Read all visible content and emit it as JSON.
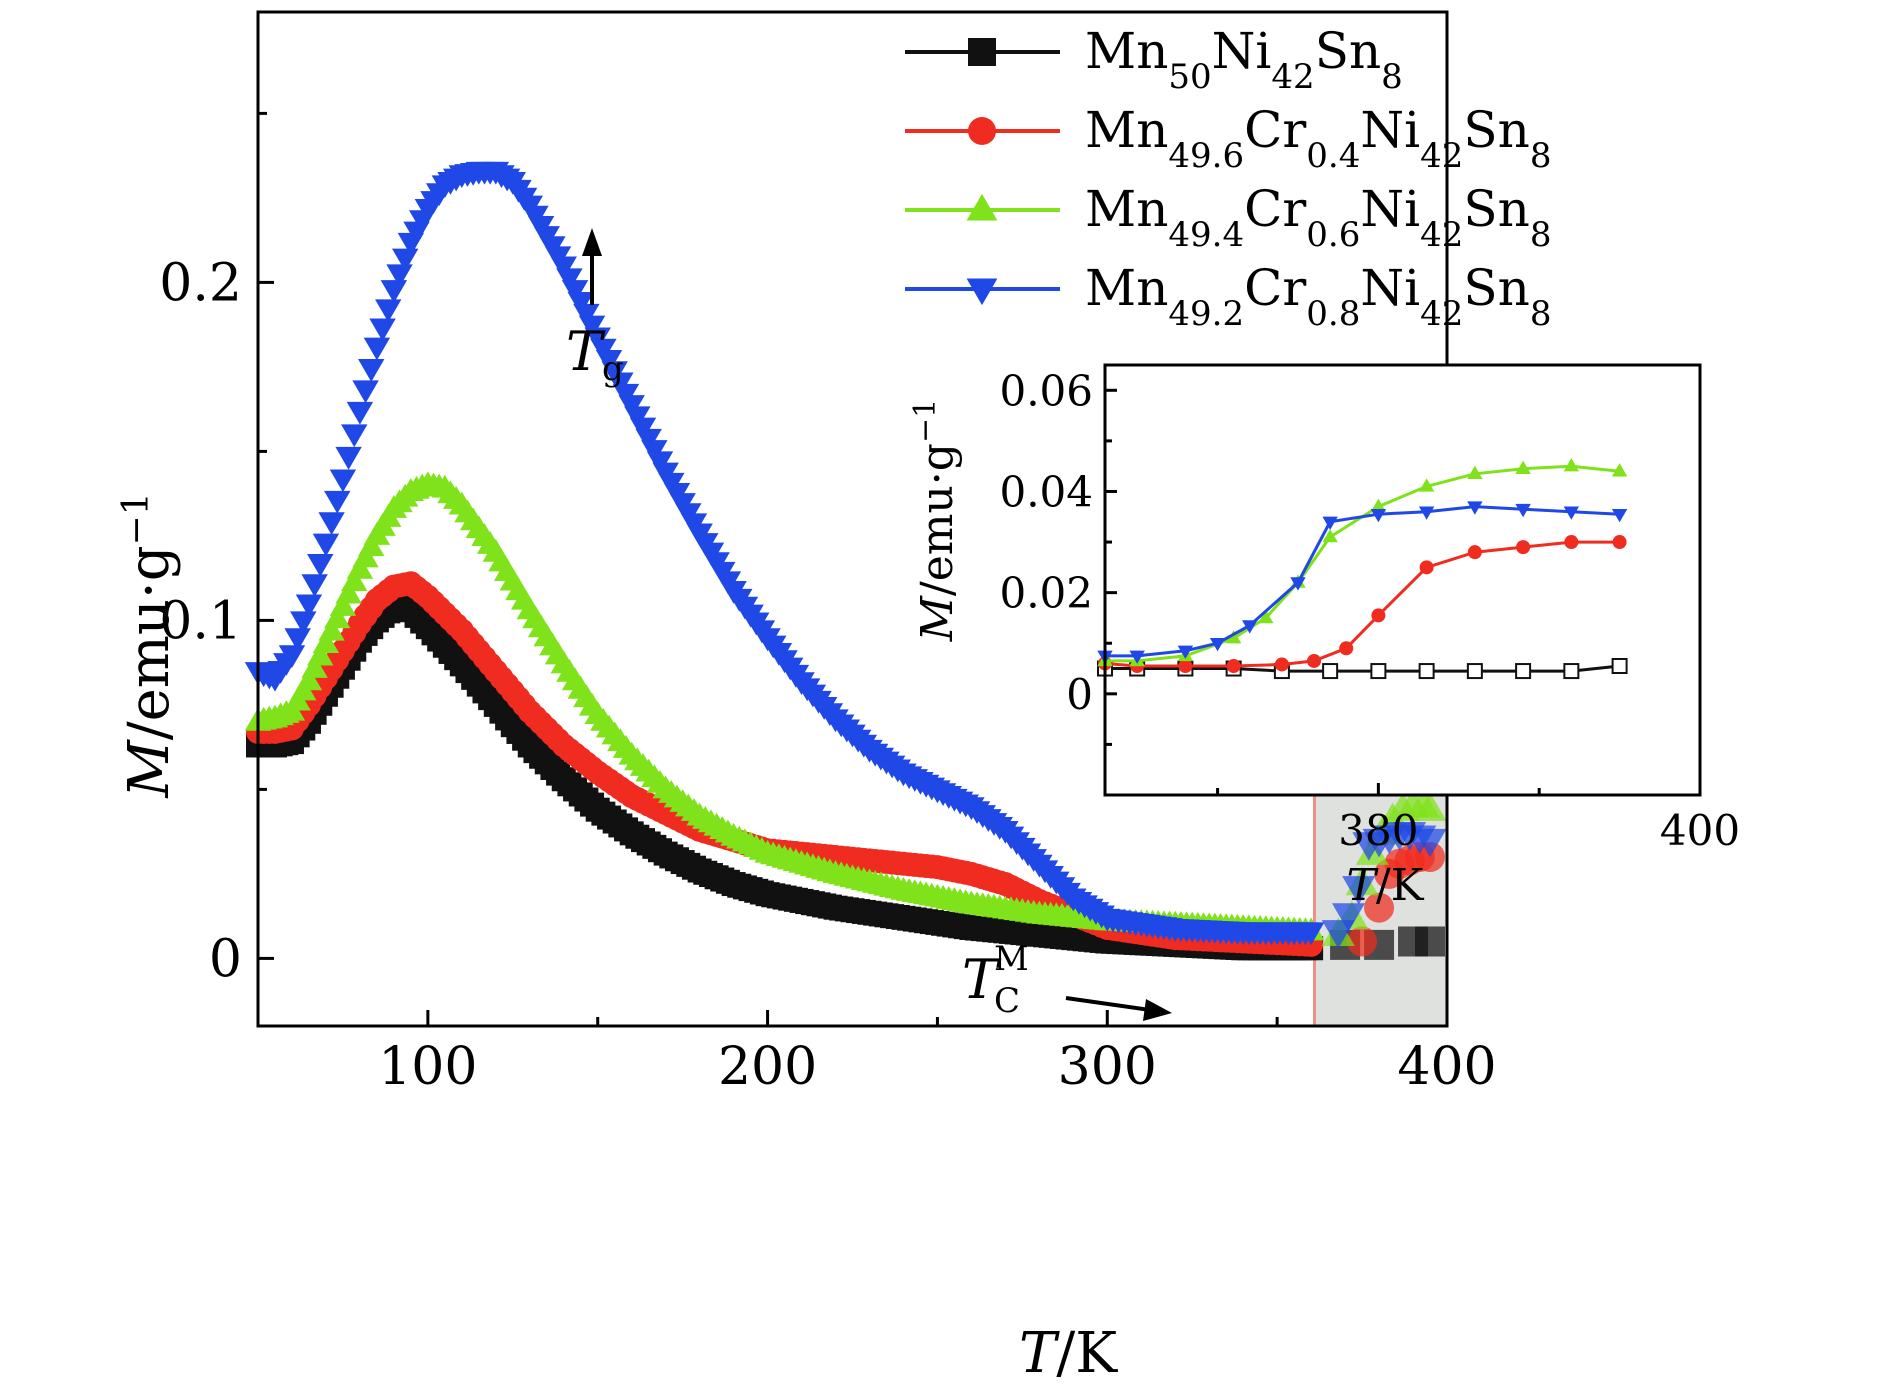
{
  "chart_data": {
    "type": "scatter",
    "xlabel": {
      "italic": "T",
      "unit": "/K"
    },
    "ylabel": {
      "italic": "M",
      "unit": "/emu·g",
      "exp": "−1"
    },
    "xlim": [
      50,
      400
    ],
    "ylim": [
      -0.02,
      0.28
    ],
    "x_ticks": [
      100,
      200,
      300,
      400
    ],
    "y_ticks": [
      {
        "value": 0,
        "label": "0"
      },
      {
        "value": 0.1,
        "label": "0.1"
      },
      {
        "value": 0.2,
        "label": "0.2"
      }
    ],
    "legend_position": "top-right",
    "annotations": {
      "tg": {
        "main": "T",
        "sub": "g"
      },
      "tc": {
        "main": "T",
        "sub": "C",
        "sup": "M"
      }
    },
    "highlight_region": {
      "x": [
        361,
        400
      ],
      "fill": "#dfe1df",
      "stroke": "#ef8f88"
    },
    "series": [
      {
        "name": "Mn50Ni42Sn8",
        "legend": [
          {
            "t": "Mn"
          },
          {
            "t": "50",
            "sub": true
          },
          {
            "t": "Ni"
          },
          {
            "t": "42",
            "sub": true
          },
          {
            "t": "Sn"
          },
          {
            "t": "8",
            "sub": true
          }
        ],
        "color": "#111111",
        "marker": "square",
        "points": [
          [
            50,
            0.063
          ],
          [
            55,
            0.063
          ],
          [
            60,
            0.064
          ],
          [
            65,
            0.07
          ],
          [
            70,
            0.078
          ],
          [
            75,
            0.086
          ],
          [
            80,
            0.094
          ],
          [
            85,
            0.1
          ],
          [
            90,
            0.104
          ],
          [
            95,
            0.103
          ],
          [
            100,
            0.098
          ],
          [
            110,
            0.087
          ],
          [
            120,
            0.075
          ],
          [
            130,
            0.063
          ],
          [
            140,
            0.053
          ],
          [
            150,
            0.044
          ],
          [
            160,
            0.037
          ],
          [
            170,
            0.031
          ],
          [
            180,
            0.026
          ],
          [
            190,
            0.022
          ],
          [
            200,
            0.019
          ],
          [
            220,
            0.015
          ],
          [
            240,
            0.012
          ],
          [
            260,
            0.009
          ],
          [
            280,
            0.007
          ],
          [
            300,
            0.005
          ],
          [
            320,
            0.004
          ],
          [
            340,
            0.003
          ],
          [
            360,
            0.003
          ],
          [
            370,
            0.004
          ],
          [
            380,
            0.004
          ],
          [
            390,
            0.005
          ],
          [
            395,
            0.005
          ]
        ]
      },
      {
        "name": "Mn49.6Cr0.4Ni42Sn8",
        "legend": [
          {
            "t": "Mn"
          },
          {
            "t": "49.6",
            "sub": true
          },
          {
            "t": "Cr"
          },
          {
            "t": "0.4",
            "sub": true
          },
          {
            "t": "Ni"
          },
          {
            "t": "42",
            "sub": true
          },
          {
            "t": "Sn"
          },
          {
            "t": "8",
            "sub": true
          }
        ],
        "color": "#f02b1f",
        "marker": "circle",
        "points": [
          [
            50,
            0.067
          ],
          [
            55,
            0.067
          ],
          [
            60,
            0.068
          ],
          [
            65,
            0.075
          ],
          [
            70,
            0.083
          ],
          [
            75,
            0.091
          ],
          [
            80,
            0.099
          ],
          [
            85,
            0.106
          ],
          [
            90,
            0.11
          ],
          [
            95,
            0.111
          ],
          [
            100,
            0.107
          ],
          [
            110,
            0.097
          ],
          [
            120,
            0.085
          ],
          [
            130,
            0.073
          ],
          [
            140,
            0.063
          ],
          [
            150,
            0.055
          ],
          [
            160,
            0.048
          ],
          [
            170,
            0.043
          ],
          [
            180,
            0.038
          ],
          [
            190,
            0.035
          ],
          [
            200,
            0.032
          ],
          [
            210,
            0.031
          ],
          [
            220,
            0.03
          ],
          [
            240,
            0.028
          ],
          [
            250,
            0.027
          ],
          [
            260,
            0.025
          ],
          [
            270,
            0.022
          ],
          [
            280,
            0.017
          ],
          [
            290,
            0.013
          ],
          [
            300,
            0.009
          ],
          [
            320,
            0.006
          ],
          [
            340,
            0.005
          ],
          [
            360,
            0.004
          ],
          [
            375,
            0.005
          ],
          [
            380,
            0.015
          ],
          [
            383,
            0.025
          ],
          [
            386,
            0.028
          ],
          [
            389,
            0.029
          ],
          [
            392,
            0.03
          ],
          [
            395,
            0.03
          ]
        ]
      },
      {
        "name": "Mn49.4Cr0.6Ni42Sn8",
        "legend": [
          {
            "t": "Mn"
          },
          {
            "t": "49.4",
            "sub": true
          },
          {
            "t": "Cr"
          },
          {
            "t": "0.6",
            "sub": true
          },
          {
            "t": "Ni"
          },
          {
            "t": "42",
            "sub": true
          },
          {
            "t": "Sn"
          },
          {
            "t": "8",
            "sub": true
          }
        ],
        "color": "#7fe21a",
        "marker": "triangle-up",
        "points": [
          [
            50,
            0.07
          ],
          [
            55,
            0.071
          ],
          [
            60,
            0.073
          ],
          [
            65,
            0.082
          ],
          [
            70,
            0.093
          ],
          [
            75,
            0.104
          ],
          [
            80,
            0.115
          ],
          [
            85,
            0.125
          ],
          [
            90,
            0.133
          ],
          [
            95,
            0.138
          ],
          [
            100,
            0.14
          ],
          [
            105,
            0.139
          ],
          [
            110,
            0.134
          ],
          [
            120,
            0.12
          ],
          [
            130,
            0.103
          ],
          [
            140,
            0.087
          ],
          [
            150,
            0.072
          ],
          [
            160,
            0.06
          ],
          [
            170,
            0.05
          ],
          [
            180,
            0.042
          ],
          [
            190,
            0.036
          ],
          [
            200,
            0.031
          ],
          [
            220,
            0.025
          ],
          [
            240,
            0.02
          ],
          [
            260,
            0.016
          ],
          [
            280,
            0.013
          ],
          [
            300,
            0.011
          ],
          [
            320,
            0.01
          ],
          [
            340,
            0.009
          ],
          [
            360,
            0.008
          ],
          [
            368,
            0.007
          ],
          [
            372,
            0.012
          ],
          [
            375,
            0.022
          ],
          [
            378,
            0.031
          ],
          [
            381,
            0.037
          ],
          [
            384,
            0.041
          ],
          [
            387,
            0.044
          ],
          [
            390,
            0.045
          ],
          [
            393,
            0.045
          ],
          [
            395,
            0.044
          ]
        ]
      },
      {
        "name": "Mn49.2Cr0.8Ni42Sn8",
        "legend": [
          {
            "t": "Mn"
          },
          {
            "t": "49.2",
            "sub": true
          },
          {
            "t": "Cr"
          },
          {
            "t": "0.8",
            "sub": true
          },
          {
            "t": "Ni"
          },
          {
            "t": "42",
            "sub": true
          },
          {
            "t": "Sn"
          },
          {
            "t": "8",
            "sub": true
          }
        ],
        "color": "#1f48e6",
        "marker": "triangle-down",
        "points": [
          [
            50,
            0.085
          ],
          [
            55,
            0.083
          ],
          [
            60,
            0.09
          ],
          [
            65,
            0.105
          ],
          [
            70,
            0.123
          ],
          [
            75,
            0.142
          ],
          [
            80,
            0.162
          ],
          [
            85,
            0.181
          ],
          [
            90,
            0.198
          ],
          [
            95,
            0.212
          ],
          [
            100,
            0.222
          ],
          [
            105,
            0.229
          ],
          [
            110,
            0.232
          ],
          [
            115,
            0.233
          ],
          [
            120,
            0.233
          ],
          [
            125,
            0.23
          ],
          [
            130,
            0.223
          ],
          [
            140,
            0.205
          ],
          [
            150,
            0.184
          ],
          [
            160,
            0.164
          ],
          [
            170,
            0.144
          ],
          [
            180,
            0.126
          ],
          [
            190,
            0.109
          ],
          [
            200,
            0.095
          ],
          [
            210,
            0.082
          ],
          [
            220,
            0.071
          ],
          [
            230,
            0.062
          ],
          [
            240,
            0.055
          ],
          [
            250,
            0.05
          ],
          [
            260,
            0.045
          ],
          [
            270,
            0.038
          ],
          [
            280,
            0.028
          ],
          [
            290,
            0.018
          ],
          [
            300,
            0.012
          ],
          [
            320,
            0.009
          ],
          [
            340,
            0.008
          ],
          [
            360,
            0.008
          ],
          [
            368,
            0.008
          ],
          [
            371,
            0.013
          ],
          [
            374,
            0.021
          ],
          [
            377,
            0.034
          ],
          [
            380,
            0.035
          ],
          [
            383,
            0.036
          ],
          [
            386,
            0.037
          ],
          [
            389,
            0.037
          ],
          [
            392,
            0.036
          ],
          [
            395,
            0.035
          ]
        ]
      }
    ],
    "inset": {
      "xlabel": {
        "italic": "T",
        "unit": "/K"
      },
      "ylabel": {
        "italic": "M",
        "unit": "/emu·g",
        "exp": "−1"
      },
      "xlim": [
        363,
        400
      ],
      "ylim": [
        -0.02,
        0.065
      ],
      "x_ticks": [
        380,
        400
      ],
      "x_minor": [
        370,
        390
      ],
      "y_ticks": [
        {
          "value": 0,
          "label": "0"
        },
        {
          "value": 0.02,
          "label": "0.02"
        },
        {
          "value": 0.04,
          "label": "0.04"
        },
        {
          "value": 0.06,
          "label": "0.06"
        }
      ],
      "series": [
        {
          "color": "#111111",
          "marker": "square",
          "points": [
            [
              363,
              0.005
            ],
            [
              365,
              0.005
            ],
            [
              368,
              0.005
            ],
            [
              371,
              0.005
            ],
            [
              374,
              0.0045
            ],
            [
              377,
              0.0045
            ],
            [
              380,
              0.0045
            ],
            [
              383,
              0.0045
            ],
            [
              386,
              0.0045
            ],
            [
              389,
              0.0045
            ],
            [
              392,
              0.0045
            ],
            [
              395,
              0.0055
            ]
          ]
        },
        {
          "color": "#f02b1f",
          "marker": "circle",
          "points": [
            [
              363,
              0.006
            ],
            [
              365,
              0.0055
            ],
            [
              368,
              0.0055
            ],
            [
              371,
              0.0055
            ],
            [
              374,
              0.0058
            ],
            [
              376,
              0.0065
            ],
            [
              378,
              0.009
            ],
            [
              380,
              0.0155
            ],
            [
              383,
              0.025
            ],
            [
              386,
              0.028
            ],
            [
              389,
              0.029
            ],
            [
              392,
              0.03
            ],
            [
              395,
              0.03
            ]
          ]
        },
        {
          "color": "#7fe21a",
          "marker": "triangle-up",
          "points": [
            [
              363,
              0.0065
            ],
            [
              365,
              0.0065
            ],
            [
              368,
              0.0075
            ],
            [
              371,
              0.011
            ],
            [
              373,
              0.015
            ],
            [
              375,
              0.022
            ],
            [
              377,
              0.031
            ],
            [
              380,
              0.037
            ],
            [
              383,
              0.041
            ],
            [
              386,
              0.0435
            ],
            [
              389,
              0.0445
            ],
            [
              392,
              0.045
            ],
            [
              395,
              0.044
            ]
          ]
        },
        {
          "color": "#1f48e6",
          "marker": "triangle-down",
          "points": [
            [
              363,
              0.0075
            ],
            [
              365,
              0.0075
            ],
            [
              368,
              0.0085
            ],
            [
              370,
              0.01
            ],
            [
              372,
              0.0135
            ],
            [
              375,
              0.022
            ],
            [
              377,
              0.034
            ],
            [
              380,
              0.0355
            ],
            [
              383,
              0.036
            ],
            [
              386,
              0.037
            ],
            [
              389,
              0.0365
            ],
            [
              392,
              0.036
            ],
            [
              395,
              0.0355
            ]
          ]
        }
      ]
    }
  }
}
